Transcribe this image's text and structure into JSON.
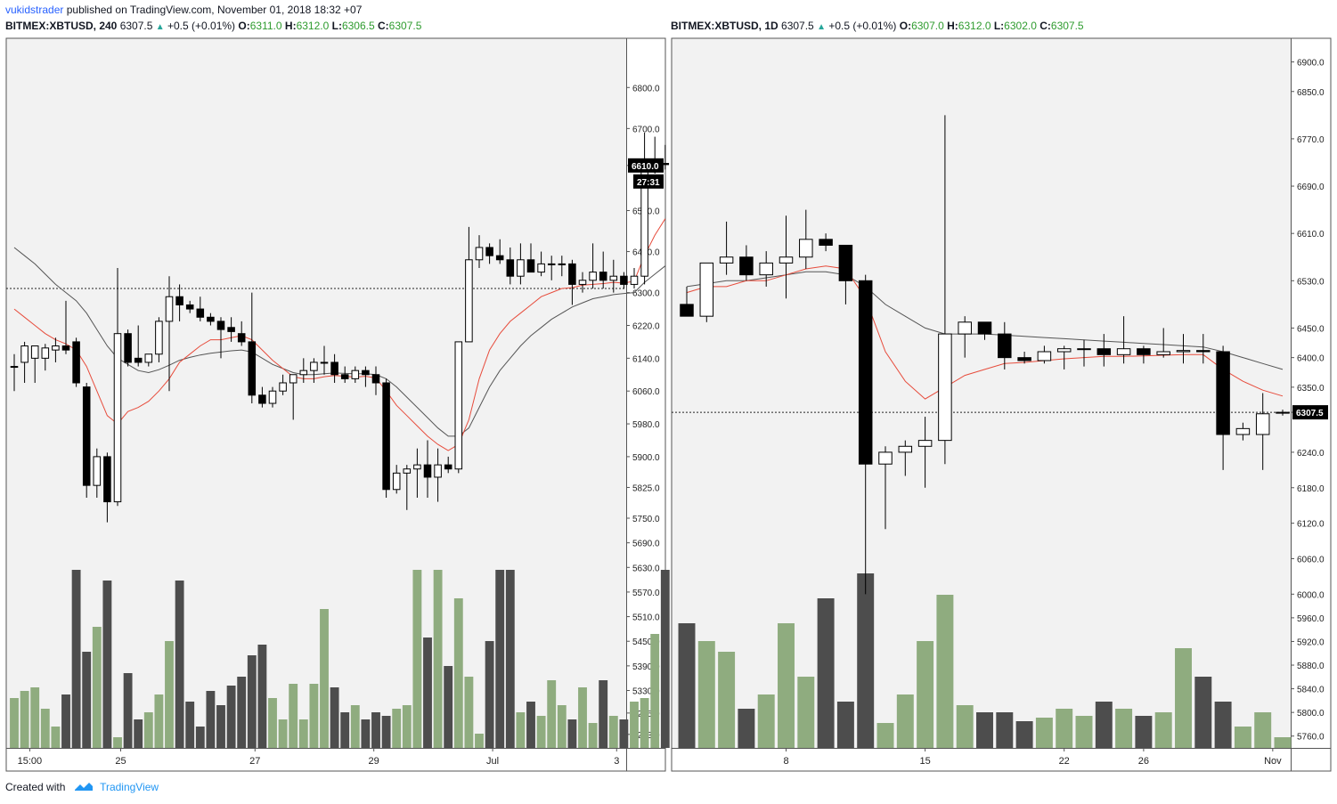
{
  "header": {
    "username": "vukidstrader",
    "text": "published on TradingView.com, November 01, 2018 18:32 +07"
  },
  "footer": {
    "created_with": "Created with",
    "brand": "TradingView",
    "icon": "tradingview-logo-icon"
  },
  "colors": {
    "up_volume": "#8fac7f",
    "down_volume": "#4d4d4d",
    "ma_fast": "#e74c3c",
    "ma_slow": "#555555",
    "panel_bg": "#f2f2f2",
    "legend_values": "#2e9b2e"
  },
  "chart_data": [
    {
      "type": "candlestick",
      "symbol": "BITMEX:XBTUSD, 240",
      "last": "6307.5",
      "change": "+0.5 (+0.01%)",
      "ohlc": {
        "O": "6311.0",
        "H": "6312.0",
        "L": "6306.5",
        "C": "6307.5"
      },
      "price_label": "6610.0",
      "countdown": "27:31",
      "price_line": 6310,
      "ylim": [
        5190,
        6920
      ],
      "y_ticks": [
        5223.0,
        5275.0,
        5330.0,
        5390.0,
        5450.0,
        5510.0,
        5570.0,
        5630.0,
        5690.0,
        5750.0,
        5825.0,
        5900.0,
        5980.0,
        6060.0,
        6140.0,
        6220.0,
        6300.0,
        6400.0,
        6500.0,
        6610.0,
        6700.0,
        6800.0
      ],
      "x_ticks": [
        {
          "label": "15:00",
          "index": 1.5
        },
        {
          "label": "25",
          "index": 10.3
        },
        {
          "label": "27",
          "index": 23.3
        },
        {
          "label": "29",
          "index": 34.8
        },
        {
          "label": "Jul",
          "index": 46.3
        },
        {
          "label": "3",
          "index": 58.3
        }
      ],
      "candles": [
        {
          "o": 6120,
          "h": 6150,
          "l": 6060,
          "c": 6120
        },
        {
          "o": 6130,
          "h": 6180,
          "l": 6080,
          "c": 6170
        },
        {
          "o": 6140,
          "h": 6170,
          "l": 6080,
          "c": 6170
        },
        {
          "o": 6140,
          "h": 6175,
          "l": 6110,
          "c": 6165
        },
        {
          "o": 6160,
          "h": 6190,
          "l": 6130,
          "c": 6170
        },
        {
          "o": 6170,
          "h": 6280,
          "l": 6150,
          "c": 6160
        },
        {
          "o": 6180,
          "h": 6190,
          "l": 6070,
          "c": 6080
        },
        {
          "o": 6070,
          "h": 6080,
          "l": 5800,
          "c": 5830
        },
        {
          "o": 5830,
          "h": 5920,
          "l": 5800,
          "c": 5900
        },
        {
          "o": 5900,
          "h": 5910,
          "l": 5740,
          "c": 5790
        },
        {
          "o": 5790,
          "h": 6360,
          "l": 5780,
          "c": 6200
        },
        {
          "o": 6200,
          "h": 6210,
          "l": 6120,
          "c": 6130
        },
        {
          "o": 6140,
          "h": 6220,
          "l": 6120,
          "c": 6130
        },
        {
          "o": 6130,
          "h": 6150,
          "l": 6120,
          "c": 6150
        },
        {
          "o": 6150,
          "h": 6240,
          "l": 6130,
          "c": 6230
        },
        {
          "o": 6230,
          "h": 6340,
          "l": 6060,
          "c": 6290
        },
        {
          "o": 6290,
          "h": 6320,
          "l": 6230,
          "c": 6270
        },
        {
          "o": 6270,
          "h": 6280,
          "l": 6250,
          "c": 6260
        },
        {
          "o": 6260,
          "h": 6290,
          "l": 6230,
          "c": 6240
        },
        {
          "o": 6240,
          "h": 6250,
          "l": 6220,
          "c": 6230
        },
        {
          "o": 6230,
          "h": 6240,
          "l": 6140,
          "c": 6210
        },
        {
          "o": 6215,
          "h": 6240,
          "l": 6180,
          "c": 6205
        },
        {
          "o": 6200,
          "h": 6230,
          "l": 6170,
          "c": 6180
        },
        {
          "o": 6180,
          "h": 6300,
          "l": 6030,
          "c": 6050
        },
        {
          "o": 6050,
          "h": 6070,
          "l": 6020,
          "c": 6030
        },
        {
          "o": 6030,
          "h": 6070,
          "l": 6020,
          "c": 6060
        },
        {
          "o": 6060,
          "h": 6100,
          "l": 6050,
          "c": 6080
        },
        {
          "o": 6080,
          "h": 6100,
          "l": 5990,
          "c": 6100
        },
        {
          "o": 6100,
          "h": 6140,
          "l": 6080,
          "c": 6110
        },
        {
          "o": 6110,
          "h": 6140,
          "l": 6080,
          "c": 6130
        },
        {
          "o": 6130,
          "h": 6170,
          "l": 6100,
          "c": 6130
        },
        {
          "o": 6130,
          "h": 6150,
          "l": 6080,
          "c": 6100
        },
        {
          "o": 6100,
          "h": 6120,
          "l": 6080,
          "c": 6090
        },
        {
          "o": 6090,
          "h": 6120,
          "l": 6080,
          "c": 6110
        },
        {
          "o": 6110,
          "h": 6120,
          "l": 6070,
          "c": 6100
        },
        {
          "o": 6100,
          "h": 6120,
          "l": 6050,
          "c": 6080
        },
        {
          "o": 6080,
          "h": 6090,
          "l": 5800,
          "c": 5820
        },
        {
          "o": 5820,
          "h": 5880,
          "l": 5810,
          "c": 5860
        },
        {
          "o": 5860,
          "h": 5880,
          "l": 5770,
          "c": 5870
        },
        {
          "o": 5870,
          "h": 5920,
          "l": 5800,
          "c": 5880
        },
        {
          "o": 5880,
          "h": 5940,
          "l": 5800,
          "c": 5850
        },
        {
          "o": 5850,
          "h": 5920,
          "l": 5790,
          "c": 5880
        },
        {
          "o": 5880,
          "h": 5900,
          "l": 5860,
          "c": 5870
        },
        {
          "o": 5870,
          "h": 6180,
          "l": 5860,
          "c": 6180
        },
        {
          "o": 6180,
          "h": 6460,
          "l": 6180,
          "c": 6380
        },
        {
          "o": 6380,
          "h": 6440,
          "l": 6360,
          "c": 6410
        },
        {
          "o": 6410,
          "h": 6420,
          "l": 6370,
          "c": 6390
        },
        {
          "o": 6390,
          "h": 6430,
          "l": 6370,
          "c": 6380
        },
        {
          "o": 6380,
          "h": 6410,
          "l": 6320,
          "c": 6340
        },
        {
          "o": 6340,
          "h": 6420,
          "l": 6320,
          "c": 6380
        },
        {
          "o": 6380,
          "h": 6420,
          "l": 6350,
          "c": 6350
        },
        {
          "o": 6350,
          "h": 6400,
          "l": 6340,
          "c": 6370
        },
        {
          "o": 6370,
          "h": 6390,
          "l": 6330,
          "c": 6370
        },
        {
          "o": 6370,
          "h": 6390,
          "l": 6340,
          "c": 6370
        },
        {
          "o": 6370,
          "h": 6380,
          "l": 6270,
          "c": 6320
        },
        {
          "o": 6320,
          "h": 6350,
          "l": 6300,
          "c": 6330
        },
        {
          "o": 6330,
          "h": 6420,
          "l": 6310,
          "c": 6350
        },
        {
          "o": 6350,
          "h": 6400,
          "l": 6310,
          "c": 6330
        },
        {
          "o": 6330,
          "h": 6380,
          "l": 6300,
          "c": 6340
        },
        {
          "o": 6340,
          "h": 6350,
          "l": 6310,
          "c": 6320
        },
        {
          "o": 6320,
          "h": 6360,
          "l": 6310,
          "c": 6340
        },
        {
          "o": 6340,
          "h": 6690,
          "l": 6320,
          "c": 6610
        },
        {
          "o": 6610,
          "h": 6680,
          "l": 6590,
          "c": 6615
        },
        {
          "o": 6615,
          "h": 6660,
          "l": 6600,
          "c": 6612
        }
      ],
      "ma_fast": [
        6260,
        6240,
        6220,
        6200,
        6185,
        6175,
        6160,
        6120,
        6060,
        6000,
        5980,
        6010,
        6020,
        6035,
        6060,
        6090,
        6130,
        6150,
        6170,
        6185,
        6185,
        6190,
        6195,
        6185,
        6160,
        6135,
        6115,
        6095,
        6090,
        6090,
        6095,
        6098,
        6096,
        6094,
        6096,
        6092,
        6060,
        6025,
        6000,
        5975,
        5950,
        5930,
        5915,
        5930,
        5990,
        6090,
        6160,
        6200,
        6230,
        6250,
        6270,
        6290,
        6300,
        6310,
        6312,
        6318,
        6320,
        6322,
        6325,
        6323,
        6328,
        6390,
        6440,
        6480
      ],
      "ma_slow": [
        6410,
        6390,
        6370,
        6345,
        6320,
        6300,
        6280,
        6250,
        6210,
        6170,
        6140,
        6125,
        6110,
        6105,
        6112,
        6123,
        6135,
        6142,
        6148,
        6152,
        6155,
        6158,
        6160,
        6155,
        6140,
        6125,
        6115,
        6105,
        6100,
        6100,
        6102,
        6104,
        6103,
        6102,
        6102,
        6100,
        6090,
        6070,
        6045,
        6020,
        5995,
        5970,
        5950,
        5950,
        5970,
        6020,
        6070,
        6110,
        6140,
        6170,
        6195,
        6215,
        6235,
        6250,
        6265,
        6275,
        6285,
        6290,
        6295,
        6298,
        6300,
        6325,
        6345,
        6365
      ],
      "volume": [
        28,
        32,
        34,
        22,
        12,
        30,
        100,
        54,
        68,
        94,
        6,
        42,
        16,
        20,
        30,
        60,
        94,
        26,
        12,
        32,
        24,
        35,
        40,
        52,
        58,
        28,
        16,
        36,
        16,
        36,
        78,
        34,
        20,
        24,
        16,
        20,
        18,
        22,
        24,
        100,
        62,
        100,
        46,
        84,
        40,
        8,
        60,
        100,
        100,
        20,
        26,
        18,
        38,
        24,
        16,
        34,
        14,
        38,
        18,
        16,
        26,
        28,
        64,
        100
      ]
    },
    {
      "type": "candlestick",
      "symbol": "BITMEX:XBTUSD, 1D",
      "last": "6307.5",
      "change": "+0.5 (+0.01%)",
      "ohlc": {
        "O": "6307.0",
        "H": "6312.0",
        "L": "6302.0",
        "C": "6307.5"
      },
      "price_label": "6307.5",
      "price_line": 6307.5,
      "ylim": [
        5740,
        6940
      ],
      "y_ticks": [
        5760.0,
        5800.0,
        5840.0,
        5880.0,
        5920.0,
        5960.0,
        6000.0,
        6060.0,
        6120.0,
        6180.0,
        6240.0,
        6307.5,
        6350.0,
        6400.0,
        6450.0,
        6530.0,
        6610.0,
        6690.0,
        6770.0,
        6850.0,
        6900.0
      ],
      "x_ticks": [
        {
          "label": "8",
          "index": 5
        },
        {
          "label": "15",
          "index": 12
        },
        {
          "label": "22",
          "index": 19
        },
        {
          "label": "26",
          "index": 23
        },
        {
          "label": "Nov",
          "index": 29.5
        }
      ],
      "candles": [
        {
          "o": 6490,
          "h": 6520,
          "l": 6470,
          "c": 6470
        },
        {
          "o": 6470,
          "h": 6560,
          "l": 6460,
          "c": 6560
        },
        {
          "o": 6560,
          "h": 6630,
          "l": 6540,
          "c": 6570
        },
        {
          "o": 6570,
          "h": 6590,
          "l": 6530,
          "c": 6540
        },
        {
          "o": 6540,
          "h": 6580,
          "l": 6520,
          "c": 6560
        },
        {
          "o": 6560,
          "h": 6640,
          "l": 6500,
          "c": 6570
        },
        {
          "o": 6570,
          "h": 6650,
          "l": 6550,
          "c": 6600
        },
        {
          "o": 6600,
          "h": 6610,
          "l": 6580,
          "c": 6590
        },
        {
          "o": 6590,
          "h": 6590,
          "l": 6490,
          "c": 6530
        },
        {
          "o": 6530,
          "h": 6540,
          "l": 6000,
          "c": 6220
        },
        {
          "o": 6220,
          "h": 6250,
          "l": 6110,
          "c": 6240
        },
        {
          "o": 6240,
          "h": 6260,
          "l": 6200,
          "c": 6250
        },
        {
          "o": 6250,
          "h": 6300,
          "l": 6180,
          "c": 6260
        },
        {
          "o": 6260,
          "h": 6810,
          "l": 6220,
          "c": 6440
        },
        {
          "o": 6440,
          "h": 6470,
          "l": 6400,
          "c": 6460
        },
        {
          "o": 6460,
          "h": 6460,
          "l": 6430,
          "c": 6440
        },
        {
          "o": 6440,
          "h": 6460,
          "l": 6380,
          "c": 6400
        },
        {
          "o": 6400,
          "h": 6410,
          "l": 6390,
          "c": 6395
        },
        {
          "o": 6395,
          "h": 6420,
          "l": 6390,
          "c": 6410
        },
        {
          "o": 6410,
          "h": 6420,
          "l": 6380,
          "c": 6415
        },
        {
          "o": 6415,
          "h": 6430,
          "l": 6385,
          "c": 6415
        },
        {
          "o": 6415,
          "h": 6440,
          "l": 6385,
          "c": 6405
        },
        {
          "o": 6405,
          "h": 6470,
          "l": 6390,
          "c": 6415
        },
        {
          "o": 6415,
          "h": 6420,
          "l": 6390,
          "c": 6405
        },
        {
          "o": 6405,
          "h": 6450,
          "l": 6400,
          "c": 6410
        },
        {
          "o": 6410,
          "h": 6440,
          "l": 6390,
          "c": 6412
        },
        {
          "o": 6412,
          "h": 6440,
          "l": 6390,
          "c": 6410
        },
        {
          "o": 6410,
          "h": 6420,
          "l": 6210,
          "c": 6270
        },
        {
          "o": 6270,
          "h": 6290,
          "l": 6260,
          "c": 6280
        },
        {
          "o": 6270,
          "h": 6340,
          "l": 6210,
          "c": 6305
        },
        {
          "o": 6307,
          "h": 6312,
          "l": 6302,
          "c": 6307.5
        }
      ],
      "ma_fast": [
        6510,
        6520,
        6520,
        6530,
        6530,
        6540,
        6550,
        6555,
        6550,
        6500,
        6410,
        6360,
        6330,
        6350,
        6370,
        6380,
        6390,
        6392,
        6395,
        6398,
        6400,
        6402,
        6402,
        6403,
        6404,
        6405,
        6405,
        6380,
        6360,
        6345,
        6335
      ],
      "ma_slow": [
        6520,
        6525,
        6530,
        6530,
        6535,
        6540,
        6545,
        6545,
        6540,
        6520,
        6490,
        6470,
        6450,
        6440,
        6440,
        6440,
        6438,
        6436,
        6434,
        6432,
        6430,
        6428,
        6426,
        6424,
        6422,
        6420,
        6418,
        6410,
        6400,
        6390,
        6380
      ],
      "volume": [
        70,
        60,
        54,
        22,
        30,
        70,
        40,
        84,
        26,
        98,
        14,
        30,
        60,
        86,
        24,
        20,
        20,
        15,
        17,
        22,
        18,
        26,
        22,
        18,
        20,
        56,
        40,
        26,
        12,
        20,
        6
      ]
    }
  ]
}
